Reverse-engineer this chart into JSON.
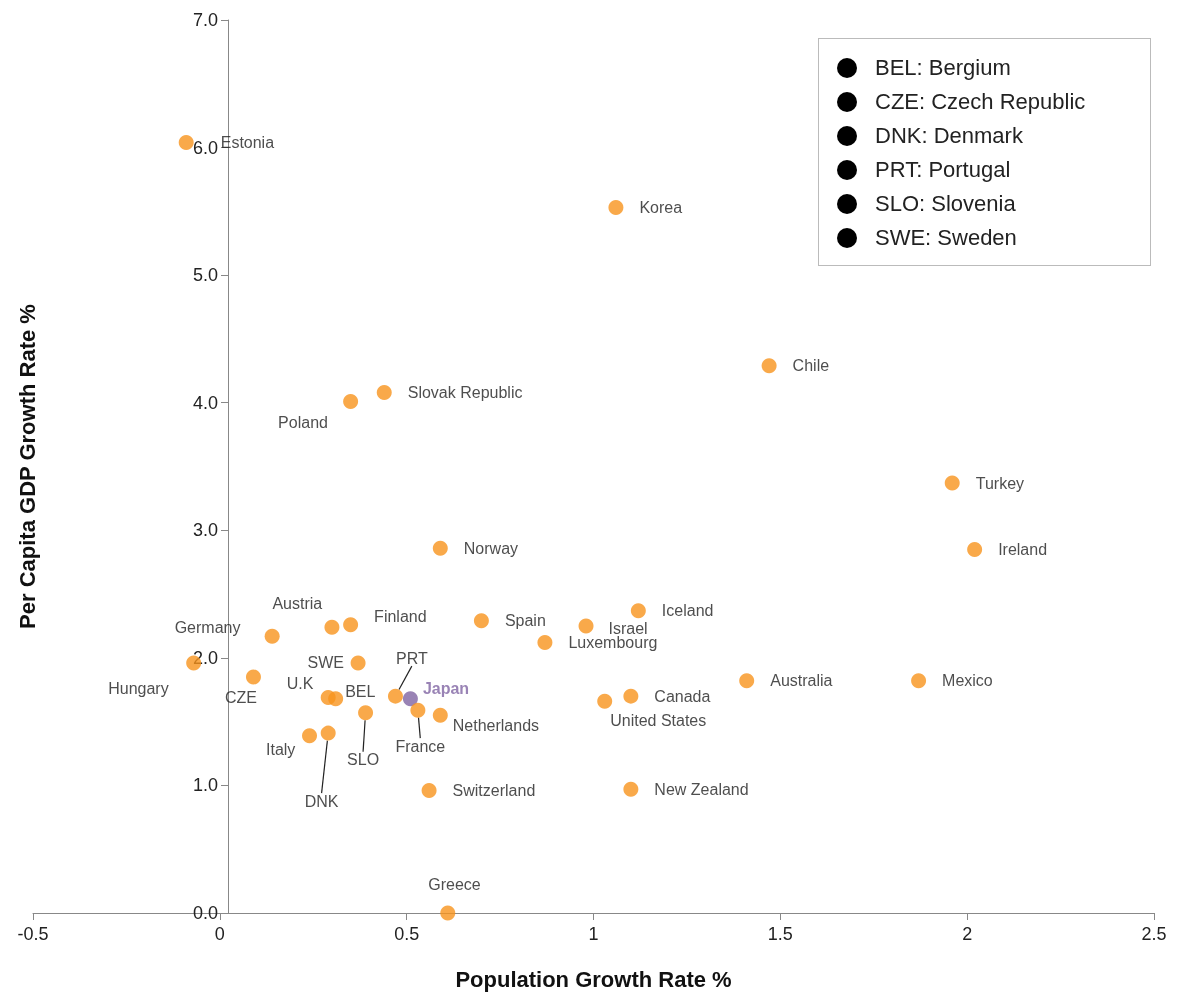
{
  "chart_data": {
    "type": "scatter",
    "xlabel": "Population Growth Rate %",
    "ylabel": "Per Capita GDP Growth Rate %",
    "marker": "circle",
    "x": [
      -0.09,
      1.06,
      1.47,
      0.44,
      0.35,
      1.96,
      2.02,
      0.59,
      1.12,
      0.7,
      0.98,
      0.87,
      0.35,
      0.3,
      0.14,
      0.37,
      -0.07,
      0.09,
      1.41,
      1.87,
      0.29,
      0.31,
      0.47,
      0.51,
      0.53,
      0.39,
      0.59,
      1.1,
      1.03,
      0.24,
      0.29,
      0.56,
      1.1,
      0.61
    ],
    "values": [
      6.04,
      5.53,
      4.29,
      4.08,
      4.01,
      3.37,
      2.85,
      2.86,
      2.37,
      2.29,
      2.25,
      2.12,
      2.26,
      2.24,
      2.17,
      1.96,
      1.96,
      1.85,
      1.82,
      1.82,
      1.69,
      1.68,
      1.7,
      1.68,
      1.59,
      1.57,
      1.55,
      1.7,
      1.66,
      1.39,
      1.41,
      0.96,
      0.97,
      0.0
    ],
    "colors": [
      "#f7941d",
      "#f7941d",
      "#f7941d",
      "#f7941d",
      "#f7941d",
      "#f7941d",
      "#f7941d",
      "#f7941d",
      "#f7941d",
      "#f7941d",
      "#f7941d",
      "#f7941d",
      "#f7941d",
      "#f7941d",
      "#f7941d",
      "#f7941d",
      "#f7941d",
      "#f7941d",
      "#f7941d",
      "#f7941d",
      "#f7941d",
      "#f7941d",
      "#f7941d",
      "#8064a2",
      "#f7941d",
      "#f7941d",
      "#f7941d",
      "#f7941d",
      "#f7941d",
      "#f7941d",
      "#f7941d",
      "#f7941d",
      "#f7941d",
      "#f7941d"
    ],
    "xlim": [
      -0.5,
      2.5
    ],
    "xticks": [
      -0.5,
      0,
      0.5,
      1,
      1.5,
      2,
      2.5
    ],
    "ylim": [
      0,
      7
    ],
    "yticks": [
      {
        "value": 0,
        "label": "0.0"
      },
      {
        "value": 1,
        "label": "1.0"
      },
      {
        "value": 2,
        "label": "2.0"
      },
      {
        "value": 3,
        "label": "3.0"
      },
      {
        "value": 4,
        "label": "4.0"
      },
      {
        "value": 5,
        "label": "5.0"
      },
      {
        "value": 6,
        "label": "6.0"
      },
      {
        "value": 7,
        "label": "7.0"
      }
    ],
    "grid": false,
    "annotations": [
      {
        "text": "Estonia",
        "x": -0.09,
        "y": 6.04
      },
      {
        "text": "Korea",
        "x": 1.06,
        "y": 5.53
      },
      {
        "text": "Chile",
        "x": 1.47,
        "y": 4.29
      },
      {
        "text": "Slovak Republic",
        "x": 0.44,
        "y": 4.08
      },
      {
        "text": "Poland",
        "x": 0.35,
        "y": 4.01
      },
      {
        "text": "Turkey",
        "x": 1.96,
        "y": 3.37
      },
      {
        "text": "Ireland",
        "x": 2.02,
        "y": 2.85
      },
      {
        "text": "Norway",
        "x": 0.59,
        "y": 2.86
      },
      {
        "text": "Iceland",
        "x": 1.12,
        "y": 2.37
      },
      {
        "text": "Spain",
        "x": 0.7,
        "y": 2.29
      },
      {
        "text": "Israel",
        "x": 0.98,
        "y": 2.25
      },
      {
        "text": "Luxembourg",
        "x": 0.87,
        "y": 2.12
      },
      {
        "text": "Finland",
        "x": 0.35,
        "y": 2.26
      },
      {
        "text": "Austria",
        "x": 0.3,
        "y": 2.24
      },
      {
        "text": "Germany",
        "x": 0.14,
        "y": 2.17
      },
      {
        "text": "SWE",
        "x": 0.37,
        "y": 1.96
      },
      {
        "text": "Hungary",
        "x": -0.07,
        "y": 1.96
      },
      {
        "text": "CZE",
        "x": 0.09,
        "y": 1.85
      },
      {
        "text": "Australia",
        "x": 1.41,
        "y": 1.82
      },
      {
        "text": "Mexico",
        "x": 1.87,
        "y": 1.82
      },
      {
        "text": "U.K",
        "x": 0.29,
        "y": 1.69
      },
      {
        "text": "BEL",
        "x": 0.31,
        "y": 1.68
      },
      {
        "text": "PRT",
        "x": 0.47,
        "y": 1.7
      },
      {
        "text": "Japan",
        "x": 0.51,
        "y": 1.68
      },
      {
        "text": "France",
        "x": 0.53,
        "y": 1.59
      },
      {
        "text": "SLO",
        "x": 0.39,
        "y": 1.57
      },
      {
        "text": "Netherlands",
        "x": 0.59,
        "y": 1.55
      },
      {
        "text": "Canada",
        "x": 1.1,
        "y": 1.7
      },
      {
        "text": "United States",
        "x": 1.03,
        "y": 1.66
      },
      {
        "text": "Italy",
        "x": 0.24,
        "y": 1.39
      },
      {
        "text": "DNK",
        "x": 0.29,
        "y": 1.41
      },
      {
        "text": "Switzerland",
        "x": 0.56,
        "y": 0.96
      },
      {
        "text": "New Zealand",
        "x": 1.1,
        "y": 0.97
      },
      {
        "text": "Greece",
        "x": 0.61,
        "y": 0.0
      },
      "BEL: Bergium",
      "CZE: Czech Republic",
      "DNK: Denmark",
      "PRT: Portugal",
      "SLO: Slovenia",
      "SWE: Sweden"
    ]
  }
}
